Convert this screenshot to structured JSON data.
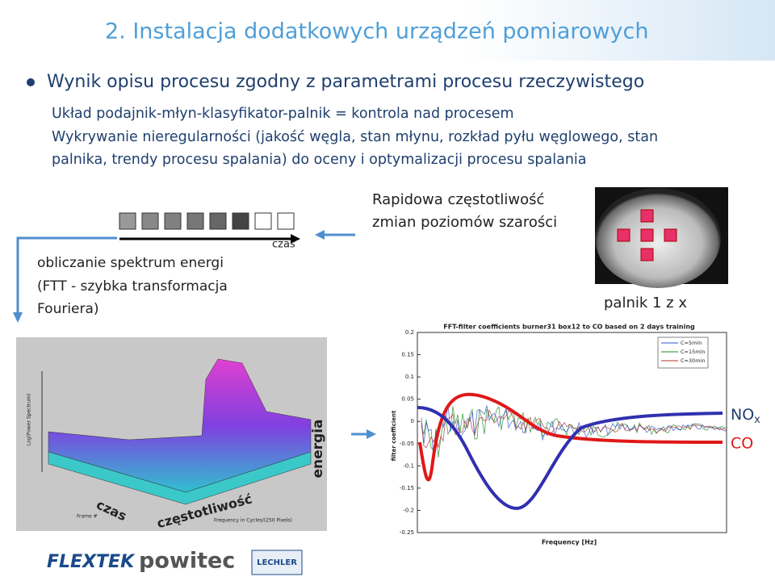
{
  "title": "2. Instalacja dodatkowych urządzeń pomiarowych",
  "bullet": "Wynik opisu procesu zgodny z parametrami procesu rzeczywistego",
  "sublines": [
    "Układ podajnik-młyn-klasyfikator-palnik = kontrola nad procesem",
    "Wykrywanie nieregularności (jakość węgla, stan młynu, rozkład pyłu węglowego, stan",
    "palnika, trendy procesu spalania) do oceny i optymalizacji procesu spalania"
  ],
  "time_label": "czas",
  "rapid": [
    "Rapidowa częstotliwość",
    "zmian poziomów szarości"
  ],
  "burner": "palnik 1 z x",
  "spectrum": [
    "obliczanie spektrum energi",
    "(FTT - szybka transformacja",
    "Fouriera)"
  ],
  "surface": {
    "axis_time": "czas",
    "axis_freq": "częstotliwość",
    "axis_energy": "energia",
    "x_label": "Frequency in Cycles/(250 Pixels)",
    "y_label": "Frame #",
    "z_label": "Log(Power Spectrum)"
  },
  "fft": {
    "title": "FFT-filter coefficients burner31 box12 to CO based on 2 days training",
    "x_label": "Frequency [Hz]",
    "y_label": "filter coefficient",
    "yticks": [
      "0.2",
      "0.15",
      "0.1",
      "0.05",
      "0",
      "-0.05",
      "-0.1",
      "-0.15",
      "-0.2",
      "-0.25"
    ],
    "legend": [
      "C=5min",
      "C=15min",
      "C=30min"
    ]
  },
  "outputs": {
    "nox": "NO",
    "nox_sub": "x",
    "co": "CO"
  },
  "logos": [
    "FLEXTEK",
    "powitec",
    "LECHLER"
  ]
}
